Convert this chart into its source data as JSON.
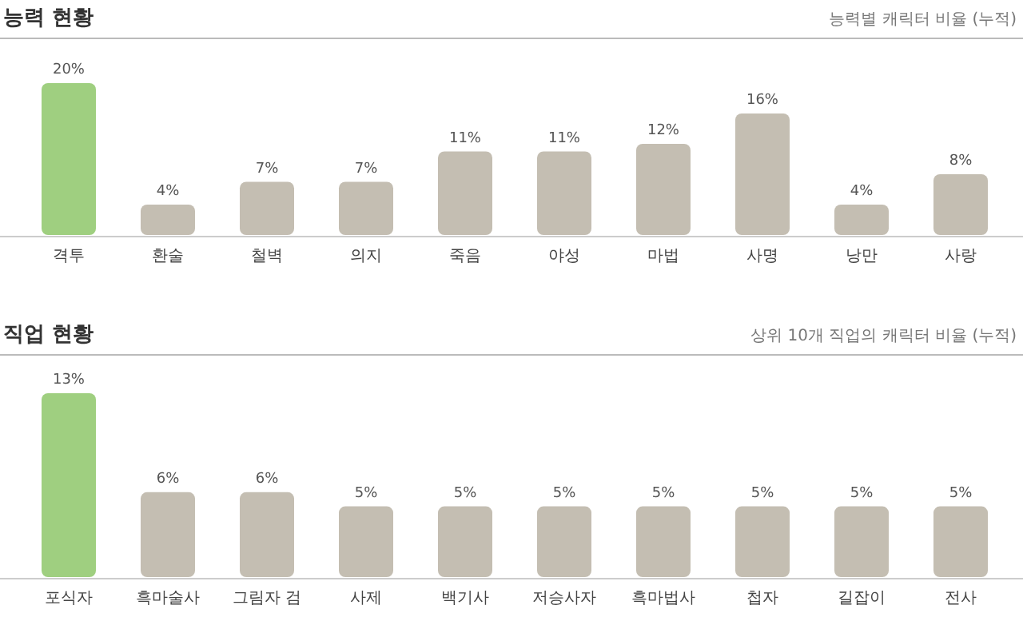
{
  "chart_data": [
    {
      "type": "bar",
      "title": "능력 현황",
      "subtitle": "능력별 캐릭터 비율 (누적)",
      "categories": [
        "격투",
        "환술",
        "철벽",
        "의지",
        "죽음",
        "야성",
        "마법",
        "사명",
        "낭만",
        "사랑"
      ],
      "values": [
        20,
        4,
        7,
        7,
        11,
        11,
        12,
        16,
        4,
        8
      ],
      "value_labels": [
        "20%",
        "4%",
        "7%",
        "7%",
        "11%",
        "11%",
        "12%",
        "16%",
        "4%",
        "8%"
      ],
      "colors": [
        "#9fcf80",
        "#c4beb2",
        "#c4beb2",
        "#c4beb2",
        "#c4beb2",
        "#c4beb2",
        "#c4beb2",
        "#c4beb2",
        "#c4beb2",
        "#c4beb2"
      ]
    },
    {
      "type": "bar",
      "title": "직업 현황",
      "subtitle": "상위 10개 직업의 캐릭터 비율 (누적)",
      "categories": [
        "포식자",
        "흑마술사",
        "그림자 검",
        "사제",
        "백기사",
        "저승사자",
        "흑마법사",
        "첩자",
        "길잡이",
        "전사"
      ],
      "values": [
        13,
        6,
        6,
        5,
        5,
        5,
        5,
        5,
        5,
        5
      ],
      "value_labels": [
        "13%",
        "6%",
        "6%",
        "5%",
        "5%",
        "5%",
        "5%",
        "5%",
        "5%",
        "5%"
      ],
      "colors": [
        "#9fcf80",
        "#c4beb2",
        "#c4beb2",
        "#c4beb2",
        "#c4beb2",
        "#c4beb2",
        "#c4beb2",
        "#c4beb2",
        "#c4beb2",
        "#c4beb2"
      ]
    }
  ]
}
